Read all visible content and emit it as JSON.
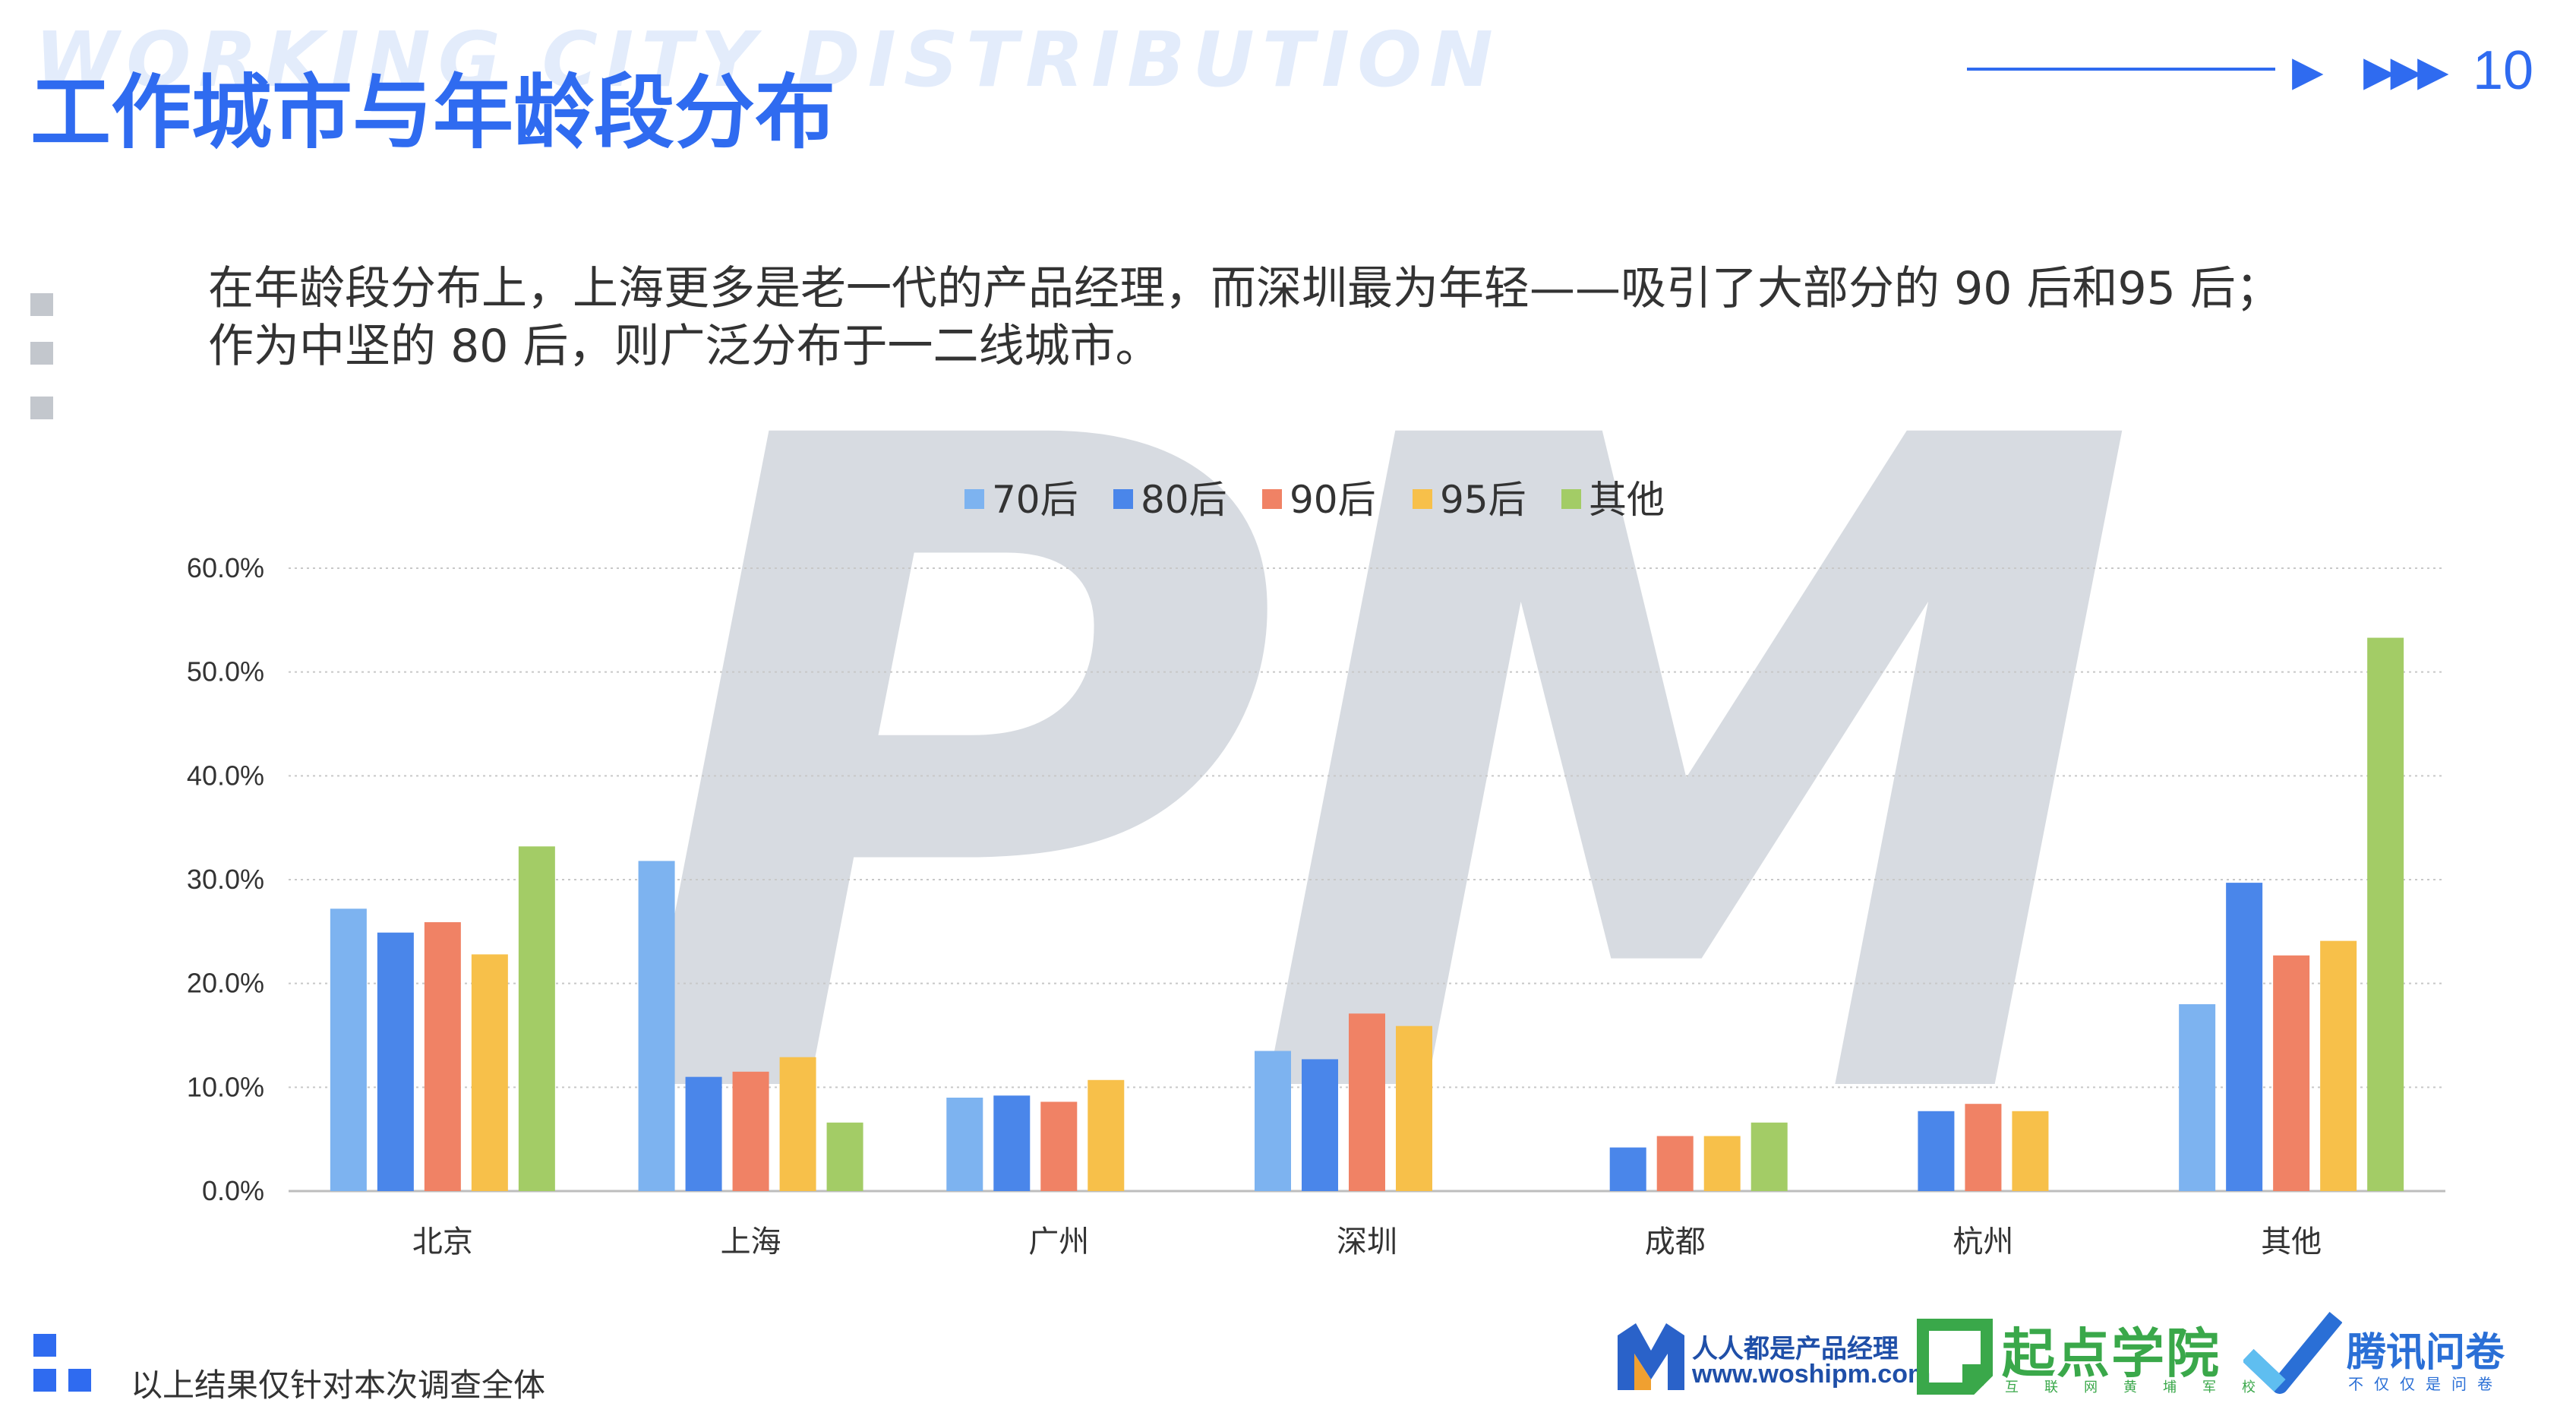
{
  "header": {
    "bg_title": "WORKING CITY DISTRIBUTION",
    "title": "工作城市与年龄段分布",
    "arrow_single": "▶",
    "arrow_triple": "▶▶▶",
    "page_number": "10",
    "accent_color": "#2f6bf0"
  },
  "description": {
    "line1": "在年龄段分布上，上海更多是老一代的产品经理，而深圳最为年轻——吸引了大部分的 90 后和95 后；",
    "line2": "作为中坚的 80 后，则广泛分布于一二线城市。"
  },
  "watermark": {
    "text": "PM"
  },
  "chart_data": {
    "type": "bar",
    "title": "",
    "xlabel": "",
    "ylabel": "",
    "categories": [
      "北京",
      "上海",
      "广州",
      "深圳",
      "成都",
      "杭州",
      "其他"
    ],
    "series": [
      {
        "name": "70后",
        "color": "#7db3f0",
        "values": [
          27.2,
          31.8,
          9.0,
          13.5,
          null,
          null,
          18.0
        ]
      },
      {
        "name": "80后",
        "color": "#4a86ea",
        "values": [
          24.9,
          11.0,
          9.2,
          12.7,
          4.2,
          7.7,
          29.7
        ]
      },
      {
        "name": "90后",
        "color": "#f08265",
        "values": [
          25.9,
          11.5,
          8.6,
          17.1,
          5.3,
          8.4,
          22.7
        ]
      },
      {
        "name": "95后",
        "color": "#f7c04a",
        "values": [
          22.8,
          12.9,
          10.7,
          15.9,
          5.3,
          7.7,
          24.1
        ]
      },
      {
        "name": "其他",
        "color": "#a3cc66",
        "values": [
          33.2,
          6.6,
          null,
          null,
          6.6,
          null,
          53.3
        ]
      }
    ],
    "ylim": [
      0,
      60
    ],
    "yticks": [
      "0.0%",
      "10.0%",
      "20.0%",
      "30.0%",
      "40.0%",
      "50.0%",
      "60.0%"
    ],
    "grid": true,
    "legend_position": "top-center"
  },
  "footer": {
    "note": "以上结果仅针对本次调查全体",
    "logo1_name": "人人都是产品经理",
    "logo1_url": "www.woshipm.com",
    "logo2_name": "起点学院",
    "logo2_sub": "互联网黄埔军校",
    "logo3_name": "腾讯问卷",
    "logo3_sub": "不仅仅是问卷"
  }
}
